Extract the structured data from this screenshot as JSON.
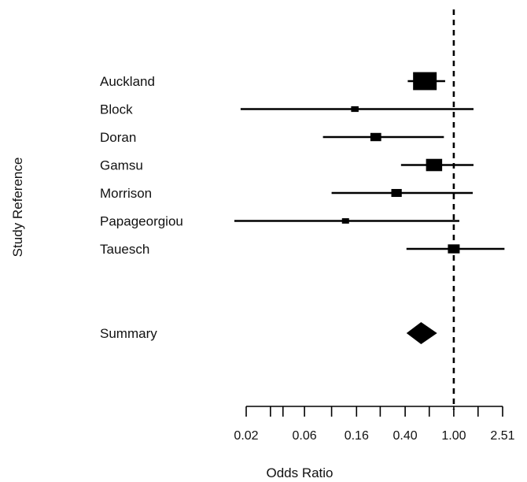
{
  "chart_data": {
    "type": "forest",
    "ylabel": "Study Reference",
    "xlabel": "Odds Ratio",
    "x_scale": "log",
    "xlim": [
      0.016,
      2.6
    ],
    "reference_line": 1.0,
    "x_ticks_labeled": [
      0.02,
      0.06,
      0.16,
      0.4,
      1.0,
      2.51
    ],
    "x_tick_labels": [
      "0.02",
      "0.06",
      "0.16",
      "0.40",
      "1.00",
      "2.51"
    ],
    "x_ticks_minor": [
      0.0316,
      0.04,
      0.1,
      0.25,
      0.63,
      1.58
    ],
    "studies": [
      {
        "name": "Auckland",
        "or": 0.58,
        "lower": 0.42,
        "upper": 0.85,
        "weight": 1.0
      },
      {
        "name": "Block",
        "or": 0.155,
        "lower": 0.018,
        "upper": 1.45,
        "weight": 0.18
      },
      {
        "name": "Doran",
        "or": 0.23,
        "lower": 0.085,
        "upper": 0.83,
        "weight": 0.35
      },
      {
        "name": "Gamsu",
        "or": 0.69,
        "lower": 0.37,
        "upper": 1.45,
        "weight": 0.62
      },
      {
        "name": "Morrison",
        "or": 0.34,
        "lower": 0.1,
        "upper": 1.43,
        "weight": 0.33
      },
      {
        "name": "Papageorgiou",
        "or": 0.13,
        "lower": 0.016,
        "upper": 1.11,
        "weight": 0.16
      },
      {
        "name": "Tauesch",
        "or": 1.0,
        "lower": 0.41,
        "upper": 2.6,
        "weight": 0.4
      }
    ],
    "summary": {
      "name": "Summary",
      "or": 0.54,
      "lower": 0.41,
      "upper": 0.73
    },
    "colors": {
      "marks": "#000000",
      "text": "#111111",
      "background": "#ffffff"
    }
  }
}
